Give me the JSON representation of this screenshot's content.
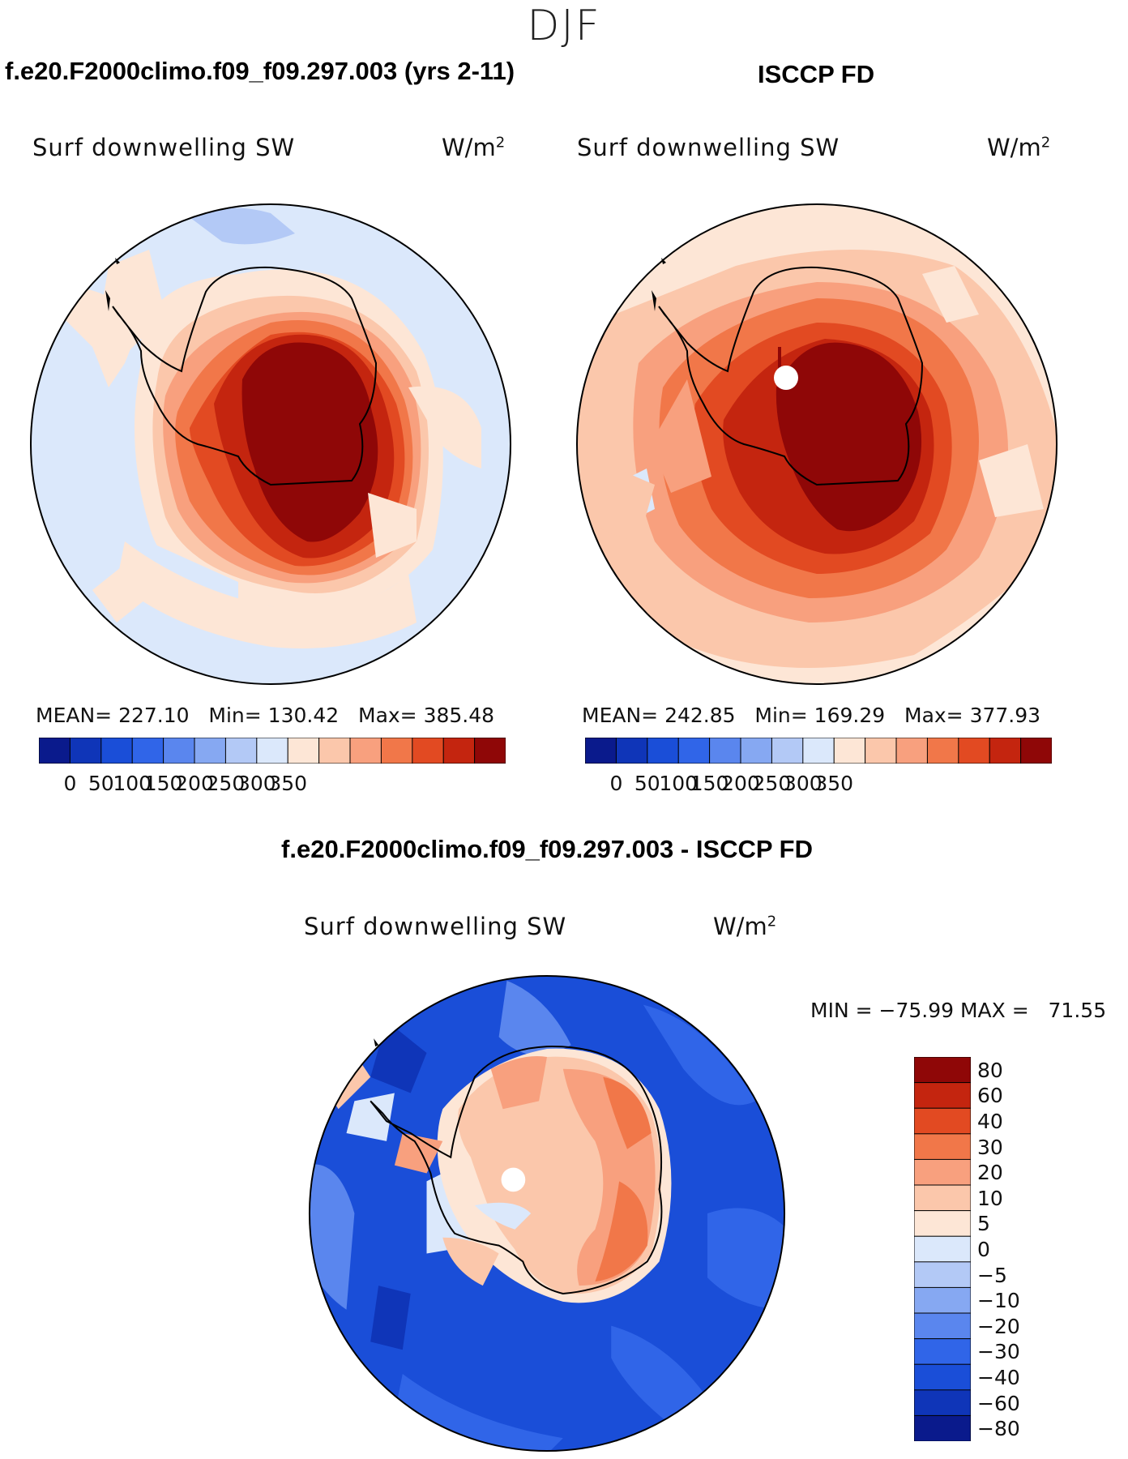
{
  "page": {
    "season": "DJF"
  },
  "chart_data": [
    {
      "type": "heatmap",
      "projection": "south-polar-stereographic",
      "title": "f.e20.F2000climo.f09_f09.297.003 (yrs 2-11)",
      "field_label": "Surf downwelling SW",
      "units": "W/m",
      "units_exponent": "2",
      "stats": {
        "mean_label": "MEAN=",
        "mean": "227.10",
        "min_label": "Min=",
        "min": "130.42",
        "max_label": "Max=",
        "max": "385.48"
      },
      "colorbar": {
        "orientation": "horizontal",
        "colors": [
          "#0a1a8c",
          "#0f35b8",
          "#1a4ed8",
          "#3065e8",
          "#5a86ee",
          "#86a8f2",
          "#b3c9f6",
          "#dbe8fb",
          "#fde6d6",
          "#fbc7ab",
          "#f8a07e",
          "#f17749",
          "#e24a22",
          "#c4250f",
          "#8f0707"
        ],
        "ticks": [
          "0",
          "50",
          "100",
          "150",
          "200",
          "250",
          "300",
          "350"
        ]
      }
    },
    {
      "type": "heatmap",
      "projection": "south-polar-stereographic",
      "title": "ISCCP FD",
      "field_label": "Surf downwelling SW",
      "units": "W/m",
      "units_exponent": "2",
      "stats": {
        "mean_label": "MEAN=",
        "mean": "242.85",
        "min_label": "Min=",
        "min": "169.29",
        "max_label": "Max=",
        "max": "377.93"
      },
      "colorbar": {
        "orientation": "horizontal",
        "colors": [
          "#0a1a8c",
          "#0f35b8",
          "#1a4ed8",
          "#3065e8",
          "#5a86ee",
          "#86a8f2",
          "#b3c9f6",
          "#dbe8fb",
          "#fde6d6",
          "#fbc7ab",
          "#f8a07e",
          "#f17749",
          "#e24a22",
          "#c4250f",
          "#8f0707"
        ],
        "ticks": [
          "0",
          "50",
          "100",
          "150",
          "200",
          "250",
          "300",
          "350"
        ]
      }
    },
    {
      "type": "heatmap",
      "projection": "south-polar-stereographic",
      "title": "f.e20.F2000climo.f09_f09.297.003 - ISCCP FD",
      "field_label": "Surf downwelling SW",
      "units": "W/m",
      "units_exponent": "2",
      "stats": {
        "min_label": "MIN =",
        "min": "−75.99",
        "max_label": "MAX =",
        "max": "71.55"
      },
      "colorbar": {
        "orientation": "vertical",
        "colors_top_to_bottom": [
          "#8f0707",
          "#c4250f",
          "#e24a22",
          "#f17749",
          "#f8a07e",
          "#fbc7ab",
          "#fde6d6",
          "#dbe8fb",
          "#b3c9f6",
          "#86a8f2",
          "#5a86ee",
          "#3065e8",
          "#1a4ed8",
          "#0f35b8",
          "#0a1a8c"
        ],
        "ticks_top_to_bottom": [
          "80",
          "60",
          "40",
          "30",
          "20",
          "10",
          "5",
          "0",
          "−5",
          "−10",
          "−20",
          "−30",
          "−40",
          "−60",
          "−80"
        ]
      }
    }
  ]
}
